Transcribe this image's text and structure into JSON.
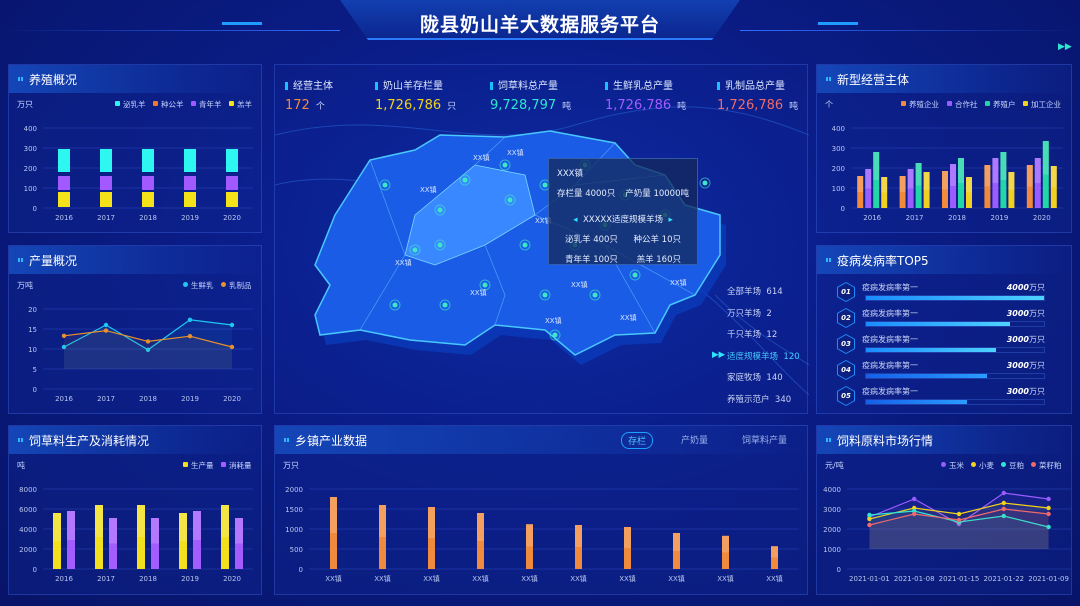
{
  "header": {
    "title": "陇县奶山羊大数据服务平台",
    "corner_icon": "double-chevron-right-icon"
  },
  "panels": {
    "breeding": {
      "title": "养殖概况"
    },
    "production": {
      "title": "产量概况"
    },
    "feed": {
      "title": "饲草料生产及消耗情况"
    },
    "new_entities": {
      "title": "新型经营主体"
    },
    "disease": {
      "title": "疫病发病率TOP5"
    },
    "market": {
      "title": "饲料原料市场行情"
    },
    "towns": {
      "title": "乡镇产业数据",
      "tabs": [
        {
          "label": "存栏",
          "active": true
        },
        {
          "label": "产奶量"
        },
        {
          "label": "饲草料产量"
        }
      ]
    }
  },
  "kpis": [
    {
      "label": "经营主体",
      "value": "172",
      "unit": "个",
      "color": "#f08a3c"
    },
    {
      "label": "奶山羊存栏量",
      "value": "1,726,786",
      "unit": "只",
      "color": "#f2d21a"
    },
    {
      "label": "饲草料总产量",
      "value": "9,728,797",
      "unit": "吨",
      "color": "#2ee6d0"
    },
    {
      "label": "生鲜乳总产量",
      "value": "1,726,786",
      "unit": "吨",
      "color": "#a25cff"
    },
    {
      "label": "乳制品总产量",
      "value": "1,726,786",
      "unit": "吨",
      "color": "#f06a6a"
    }
  ],
  "map": {
    "town_labels": [
      "XX镇",
      "XX镇",
      "XX镇",
      "XX镇",
      "XX镇",
      "XX镇",
      "XX镇",
      "XX镇",
      "XX镇",
      "XX镇"
    ],
    "tooltip": {
      "town": "XXX镇",
      "stock": "存栏量 4000只",
      "milk": "产奶量 10000吨",
      "farm": "XXXXX适度规模羊场",
      "items": [
        "泌乳羊 400只",
        "种公羊 10只",
        "青年羊 100只",
        "羔羊 160只"
      ]
    },
    "stats": [
      {
        "label": "全部羊场",
        "value": "614"
      },
      {
        "label": "万只羊场",
        "value": "2"
      },
      {
        "label": "千只羊场",
        "value": "12"
      },
      {
        "label": "适度规模羊场",
        "value": "120",
        "active": true
      },
      {
        "label": "家庭牧场",
        "value": "140"
      },
      {
        "label": "养殖示范户",
        "value": "340"
      }
    ]
  },
  "disease_top5": [
    {
      "rank": "01",
      "name": "疫病发病率第一",
      "value": "4000",
      "unit": "万只",
      "fill": 1.0
    },
    {
      "rank": "02",
      "name": "疫病发病率第一",
      "value": "3000",
      "unit": "万只",
      "fill": 0.81
    },
    {
      "rank": "03",
      "name": "疫病发病率第一",
      "value": "3000",
      "unit": "万只",
      "fill": 0.73
    },
    {
      "rank": "04",
      "name": "疫病发病率第一",
      "value": "3000",
      "unit": "万只",
      "fill": 0.68
    },
    {
      "rank": "05",
      "name": "疫病发病率第一",
      "value": "3000",
      "unit": "万只",
      "fill": 0.57
    }
  ],
  "chart_data": [
    {
      "id": "breeding",
      "type": "bar",
      "stacked": true,
      "unit": "万只",
      "categories": [
        "2016",
        "2017",
        "2018",
        "2019",
        "2020"
      ],
      "ylim": [
        0,
        400
      ],
      "yticks": [
        0,
        100,
        200,
        300,
        400
      ],
      "grid": true,
      "legend": "top-right",
      "series": [
        {
          "name": "羔羊",
          "color": "#f5e31a",
          "values": [
            85,
            85,
            85,
            85,
            85
          ]
        },
        {
          "name": "青年羊",
          "color": "#a259ff",
          "values": [
            80,
            80,
            80,
            80,
            80
          ]
        },
        {
          "name": "种公羊",
          "color": "#f07a2a",
          "values": [
            10,
            10,
            10,
            10,
            10
          ]
        },
        {
          "name": "泌乳羊",
          "color": "#2ef6f0",
          "values": [
            125,
            125,
            125,
            125,
            125
          ]
        }
      ],
      "legend_order": [
        "泌乳羊",
        "种公羊",
        "青年羊",
        "羔羊"
      ]
    },
    {
      "id": "production",
      "type": "line",
      "unit": "万吨",
      "categories": [
        "2016",
        "2017",
        "2018",
        "2019",
        "2020"
      ],
      "ylim": [
        0,
        20
      ],
      "yticks": [
        0,
        5,
        10,
        15,
        20
      ],
      "grid": true,
      "legend": "top-right",
      "series": [
        {
          "name": "生鲜乳",
          "color": "#1ec8f0",
          "values": [
            10.5,
            16,
            9.8,
            17.3,
            16
          ]
        },
        {
          "name": "乳制品",
          "color": "#e8912a",
          "values": [
            13.3,
            14.6,
            11.9,
            13.2,
            10.5
          ]
        }
      ]
    },
    {
      "id": "feed",
      "type": "bar",
      "unit": "吨",
      "categories": [
        "2016",
        "2017",
        "2018",
        "2019",
        "2020"
      ],
      "ylim": [
        0,
        8000
      ],
      "yticks": [
        0,
        2000,
        4000,
        6000,
        8000
      ],
      "grid": true,
      "legend": "top-right",
      "series": [
        {
          "name": "生产量",
          "color": "#f2e01e",
          "values": [
            5600,
            6400,
            6400,
            5600,
            6400
          ]
        },
        {
          "name": "消耗量",
          "color": "#a25cff",
          "values": [
            5800,
            5100,
            5100,
            5800,
            5100
          ]
        }
      ]
    },
    {
      "id": "new_entities",
      "type": "bar",
      "unit": "个",
      "categories": [
        "2016",
        "2017",
        "2018",
        "2019",
        "2020"
      ],
      "ylim": [
        0,
        400
      ],
      "yticks": [
        0,
        100,
        200,
        300,
        400
      ],
      "grid": true,
      "legend": "top-right",
      "series": [
        {
          "name": "养殖企业",
          "color": "#f08a3c",
          "values": [
            160,
            160,
            185,
            215,
            215
          ]
        },
        {
          "name": "合作社",
          "color": "#9b5cff",
          "values": [
            195,
            195,
            220,
            250,
            250
          ]
        },
        {
          "name": "养殖户",
          "color": "#22d6a8",
          "values": [
            280,
            225,
            250,
            280,
            335
          ]
        },
        {
          "name": "加工企业",
          "color": "#f0d020",
          "values": [
            155,
            180,
            155,
            180,
            210
          ]
        }
      ]
    },
    {
      "id": "market",
      "type": "line",
      "unit": "元/吨",
      "categories": [
        "2021-01-01",
        "2021-01-08",
        "2021-01-15",
        "2021-01-22",
        "2021-01-09"
      ],
      "ylim": [
        0,
        4000
      ],
      "yticks": [
        0,
        1000,
        2000,
        3000,
        4000
      ],
      "grid": true,
      "legend": "top-right",
      "series": [
        {
          "name": "玉米",
          "color": "#9b5cff",
          "values": [
            2600,
            3500,
            2250,
            3800,
            3500
          ]
        },
        {
          "name": "小麦",
          "color": "#f2d21a",
          "values": [
            2500,
            3050,
            2750,
            3300,
            3050
          ]
        },
        {
          "name": "豆粕",
          "color": "#2ee6d0",
          "values": [
            2700,
            2900,
            2350,
            2650,
            2100
          ]
        },
        {
          "name": "菜籽粕",
          "color": "#f06a6a",
          "values": [
            2200,
            2750,
            2450,
            3000,
            2750
          ]
        }
      ]
    },
    {
      "id": "towns",
      "type": "bar",
      "unit": "万只",
      "categories": [
        "XX镇",
        "XX镇",
        "XX镇",
        "XX镇",
        "XX镇",
        "XX镇",
        "XX镇",
        "XX镇",
        "XX镇",
        "XX镇"
      ],
      "ylim": [
        0,
        2000
      ],
      "yticks": [
        0,
        500,
        1000,
        1500,
        2000
      ],
      "grid": true,
      "legend": "none",
      "series": [
        {
          "color": "#f08a3c",
          "values": [
            1800,
            1600,
            1550,
            1400,
            1120,
            1100,
            1050,
            900,
            830,
            570
          ]
        }
      ]
    }
  ]
}
